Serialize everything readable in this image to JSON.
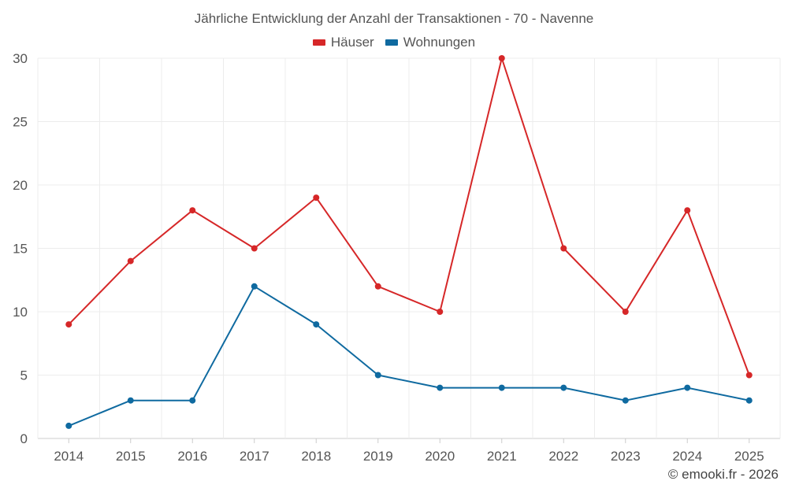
{
  "chart_data": {
    "type": "line",
    "title": "Jährliche Entwicklung der Anzahl der Transaktionen - 70 - Navenne",
    "xlabel": "",
    "ylabel": "",
    "categories": [
      "2014",
      "2015",
      "2016",
      "2017",
      "2018",
      "2019",
      "2020",
      "2021",
      "2022",
      "2023",
      "2024",
      "2025"
    ],
    "ylim": [
      0,
      30
    ],
    "yticks": [
      0,
      5,
      10,
      15,
      20,
      25,
      30
    ],
    "grid": true,
    "legend_position": "top-center",
    "series": [
      {
        "name": "Häuser",
        "color": "#d62728",
        "values": [
          9,
          14,
          18,
          15,
          19,
          12,
          10,
          30,
          15,
          10,
          18,
          5
        ]
      },
      {
        "name": "Wohnungen",
        "color": "#0f6aa0",
        "values": [
          1,
          3,
          3,
          12,
          9,
          5,
          4,
          4,
          4,
          3,
          4,
          3
        ]
      }
    ]
  },
  "footer": {
    "copyright": "© emooki.fr - 2026"
  }
}
